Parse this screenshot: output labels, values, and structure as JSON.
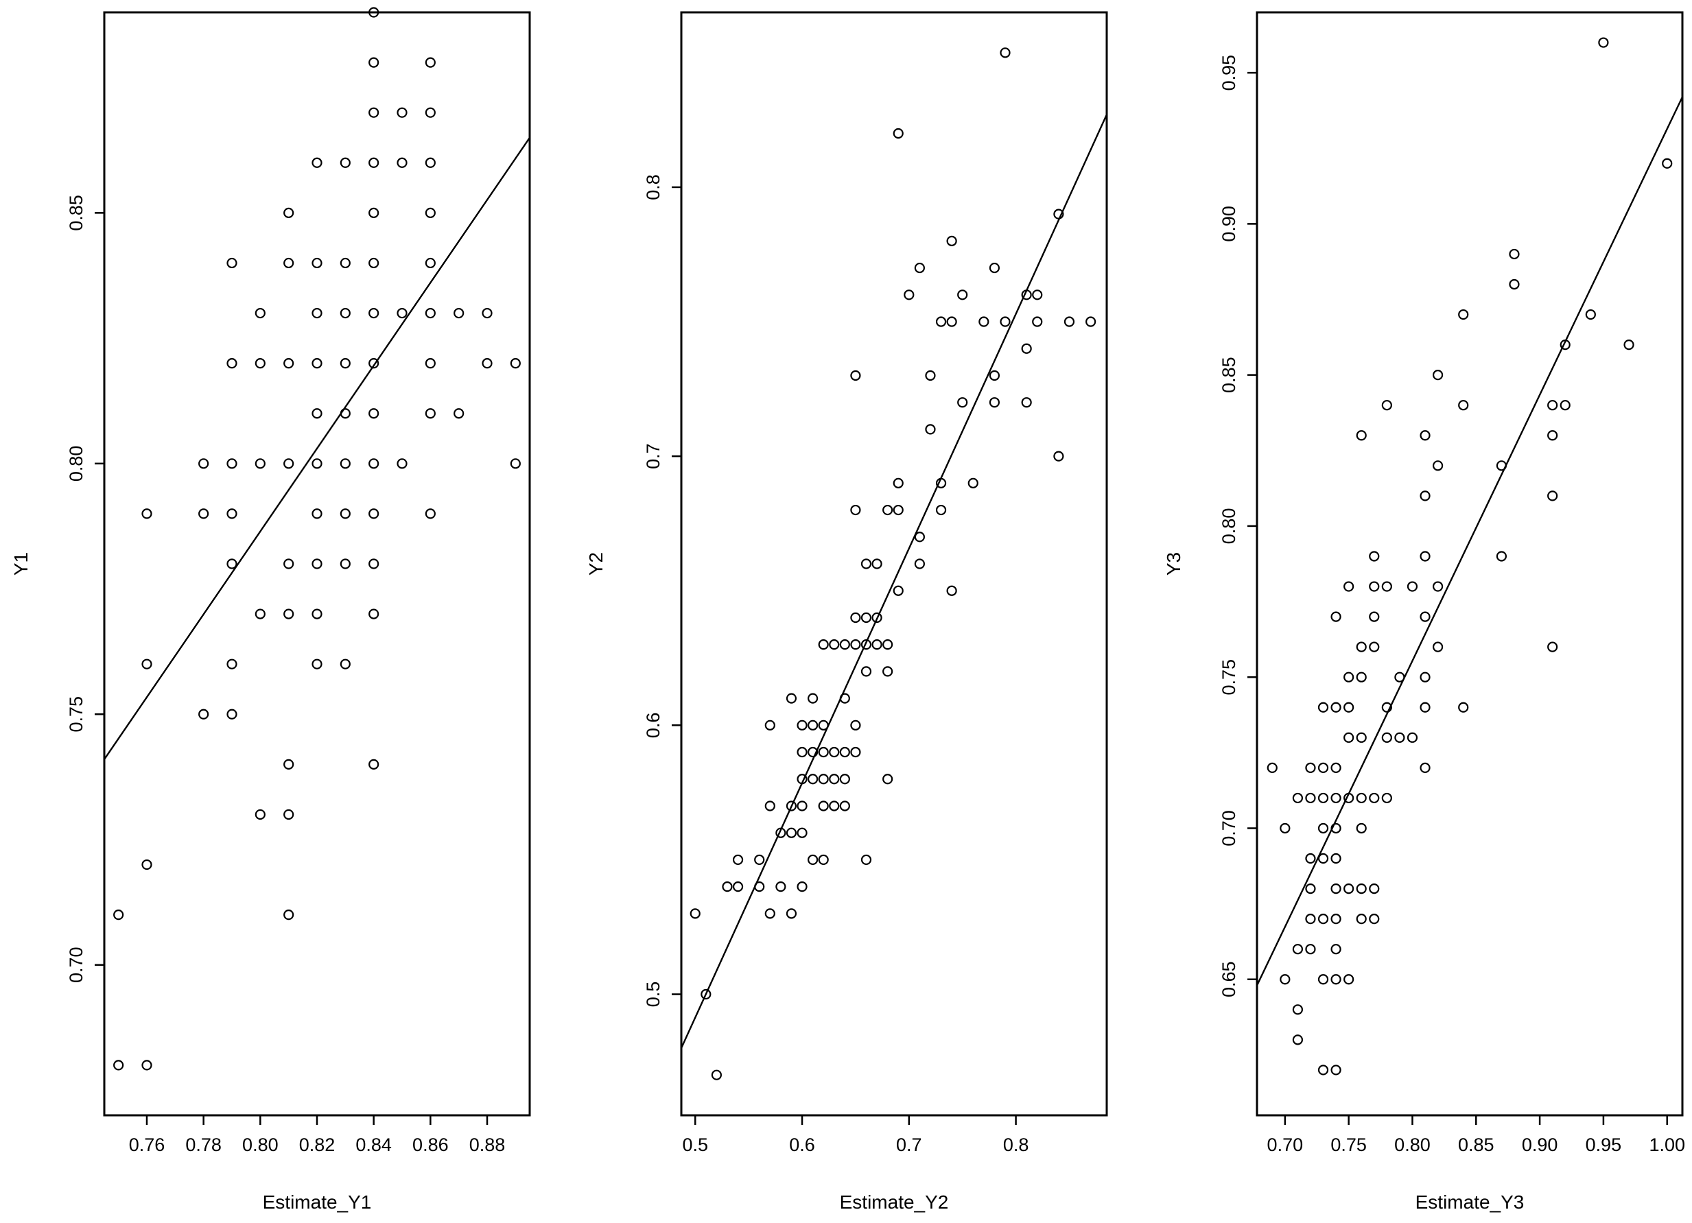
{
  "chart_data": [
    {
      "type": "scatter",
      "xlabel": "Estimate_Y1",
      "ylabel": "Y1",
      "xlim": [
        0.745,
        0.895
      ],
      "ylim": [
        0.67,
        0.89
      ],
      "xticks": [
        0.76,
        0.78,
        0.8,
        0.82,
        0.84,
        0.86,
        0.88
      ],
      "xtick_labels": [
        "0.76",
        "0.78",
        "0.80",
        "0.82",
        "0.84",
        "0.86",
        "0.88"
      ],
      "yticks": [
        0.7,
        0.75,
        0.8,
        0.85
      ],
      "ytick_labels": [
        "0.70",
        "0.75",
        "0.80",
        "0.85"
      ],
      "grid": false,
      "fit_line": {
        "x": [
          0.745,
          0.895
        ],
        "y": [
          0.741,
          0.865
        ]
      },
      "points": [
        [
          0.75,
          0.68
        ],
        [
          0.76,
          0.68
        ],
        [
          0.75,
          0.71
        ],
        [
          0.76,
          0.72
        ],
        [
          0.76,
          0.76
        ],
        [
          0.76,
          0.79
        ],
        [
          0.78,
          0.75
        ],
        [
          0.78,
          0.79
        ],
        [
          0.78,
          0.8
        ],
        [
          0.79,
          0.75
        ],
        [
          0.79,
          0.76
        ],
        [
          0.79,
          0.78
        ],
        [
          0.79,
          0.79
        ],
        [
          0.79,
          0.8
        ],
        [
          0.79,
          0.82
        ],
        [
          0.79,
          0.84
        ],
        [
          0.8,
          0.73
        ],
        [
          0.8,
          0.77
        ],
        [
          0.8,
          0.8
        ],
        [
          0.8,
          0.82
        ],
        [
          0.8,
          0.83
        ],
        [
          0.81,
          0.71
        ],
        [
          0.81,
          0.73
        ],
        [
          0.81,
          0.74
        ],
        [
          0.81,
          0.77
        ],
        [
          0.81,
          0.78
        ],
        [
          0.81,
          0.8
        ],
        [
          0.81,
          0.82
        ],
        [
          0.81,
          0.84
        ],
        [
          0.81,
          0.85
        ],
        [
          0.82,
          0.76
        ],
        [
          0.82,
          0.77
        ],
        [
          0.82,
          0.78
        ],
        [
          0.82,
          0.79
        ],
        [
          0.82,
          0.8
        ],
        [
          0.82,
          0.81
        ],
        [
          0.82,
          0.82
        ],
        [
          0.82,
          0.83
        ],
        [
          0.82,
          0.84
        ],
        [
          0.82,
          0.86
        ],
        [
          0.83,
          0.76
        ],
        [
          0.83,
          0.78
        ],
        [
          0.83,
          0.79
        ],
        [
          0.83,
          0.8
        ],
        [
          0.83,
          0.81
        ],
        [
          0.83,
          0.82
        ],
        [
          0.83,
          0.83
        ],
        [
          0.83,
          0.84
        ],
        [
          0.83,
          0.86
        ],
        [
          0.84,
          0.74
        ],
        [
          0.84,
          0.77
        ],
        [
          0.84,
          0.78
        ],
        [
          0.84,
          0.79
        ],
        [
          0.84,
          0.8
        ],
        [
          0.84,
          0.81
        ],
        [
          0.84,
          0.82
        ],
        [
          0.84,
          0.83
        ],
        [
          0.84,
          0.84
        ],
        [
          0.84,
          0.85
        ],
        [
          0.84,
          0.86
        ],
        [
          0.84,
          0.87
        ],
        [
          0.84,
          0.88
        ],
        [
          0.84,
          0.89
        ],
        [
          0.85,
          0.8
        ],
        [
          0.85,
          0.83
        ],
        [
          0.85,
          0.86
        ],
        [
          0.85,
          0.87
        ],
        [
          0.86,
          0.79
        ],
        [
          0.86,
          0.81
        ],
        [
          0.86,
          0.82
        ],
        [
          0.86,
          0.83
        ],
        [
          0.86,
          0.84
        ],
        [
          0.86,
          0.85
        ],
        [
          0.86,
          0.86
        ],
        [
          0.86,
          0.87
        ],
        [
          0.86,
          0.88
        ],
        [
          0.87,
          0.81
        ],
        [
          0.87,
          0.83
        ],
        [
          0.88,
          0.82
        ],
        [
          0.88,
          0.83
        ],
        [
          0.89,
          0.8
        ],
        [
          0.89,
          0.82
        ]
      ]
    },
    {
      "type": "scatter",
      "xlabel": "Estimate_Y2",
      "ylabel": "Y2",
      "xlim": [
        0.487,
        0.885
      ],
      "ylim": [
        0.455,
        0.865
      ],
      "xticks": [
        0.5,
        0.6,
        0.7,
        0.8
      ],
      "xtick_labels": [
        "0.5",
        "0.6",
        "0.7",
        "0.8"
      ],
      "yticks": [
        0.5,
        0.6,
        0.7,
        0.8
      ],
      "ytick_labels": [
        "0.5",
        "0.6",
        "0.7",
        "0.8"
      ],
      "grid": false,
      "fit_line": {
        "x": [
          0.487,
          0.885
        ],
        "y": [
          0.48,
          0.827
        ]
      },
      "points": [
        [
          0.5,
          0.53
        ],
        [
          0.51,
          0.5
        ],
        [
          0.52,
          0.47
        ],
        [
          0.53,
          0.54
        ],
        [
          0.54,
          0.54
        ],
        [
          0.54,
          0.55
        ],
        [
          0.56,
          0.54
        ],
        [
          0.56,
          0.55
        ],
        [
          0.57,
          0.53
        ],
        [
          0.57,
          0.57
        ],
        [
          0.57,
          0.6
        ],
        [
          0.58,
          0.54
        ],
        [
          0.58,
          0.56
        ],
        [
          0.59,
          0.53
        ],
        [
          0.59,
          0.56
        ],
        [
          0.59,
          0.57
        ],
        [
          0.59,
          0.61
        ],
        [
          0.6,
          0.54
        ],
        [
          0.6,
          0.56
        ],
        [
          0.6,
          0.57
        ],
        [
          0.6,
          0.58
        ],
        [
          0.6,
          0.59
        ],
        [
          0.6,
          0.6
        ],
        [
          0.61,
          0.55
        ],
        [
          0.61,
          0.58
        ],
        [
          0.61,
          0.59
        ],
        [
          0.61,
          0.6
        ],
        [
          0.61,
          0.61
        ],
        [
          0.62,
          0.55
        ],
        [
          0.62,
          0.57
        ],
        [
          0.62,
          0.58
        ],
        [
          0.62,
          0.59
        ],
        [
          0.62,
          0.6
        ],
        [
          0.62,
          0.63
        ],
        [
          0.63,
          0.57
        ],
        [
          0.63,
          0.58
        ],
        [
          0.63,
          0.59
        ],
        [
          0.63,
          0.63
        ],
        [
          0.64,
          0.57
        ],
        [
          0.64,
          0.58
        ],
        [
          0.64,
          0.59
        ],
        [
          0.64,
          0.61
        ],
        [
          0.64,
          0.63
        ],
        [
          0.65,
          0.59
        ],
        [
          0.65,
          0.6
        ],
        [
          0.65,
          0.63
        ],
        [
          0.65,
          0.64
        ],
        [
          0.65,
          0.68
        ],
        [
          0.65,
          0.73
        ],
        [
          0.66,
          0.55
        ],
        [
          0.66,
          0.62
        ],
        [
          0.66,
          0.63
        ],
        [
          0.66,
          0.64
        ],
        [
          0.66,
          0.66
        ],
        [
          0.67,
          0.63
        ],
        [
          0.67,
          0.64
        ],
        [
          0.67,
          0.66
        ],
        [
          0.68,
          0.58
        ],
        [
          0.68,
          0.62
        ],
        [
          0.68,
          0.63
        ],
        [
          0.68,
          0.68
        ],
        [
          0.69,
          0.65
        ],
        [
          0.69,
          0.68
        ],
        [
          0.69,
          0.69
        ],
        [
          0.69,
          0.82
        ],
        [
          0.7,
          0.76
        ],
        [
          0.71,
          0.66
        ],
        [
          0.71,
          0.67
        ],
        [
          0.71,
          0.77
        ],
        [
          0.72,
          0.71
        ],
        [
          0.72,
          0.73
        ],
        [
          0.73,
          0.68
        ],
        [
          0.73,
          0.69
        ],
        [
          0.73,
          0.75
        ],
        [
          0.74,
          0.65
        ],
        [
          0.74,
          0.75
        ],
        [
          0.74,
          0.78
        ],
        [
          0.75,
          0.72
        ],
        [
          0.75,
          0.76
        ],
        [
          0.76,
          0.69
        ],
        [
          0.77,
          0.75
        ],
        [
          0.78,
          0.72
        ],
        [
          0.78,
          0.73
        ],
        [
          0.78,
          0.77
        ],
        [
          0.79,
          0.75
        ],
        [
          0.79,
          0.85
        ],
        [
          0.81,
          0.72
        ],
        [
          0.81,
          0.74
        ],
        [
          0.81,
          0.76
        ],
        [
          0.82,
          0.75
        ],
        [
          0.82,
          0.76
        ],
        [
          0.84,
          0.7
        ],
        [
          0.84,
          0.79
        ],
        [
          0.85,
          0.75
        ],
        [
          0.87,
          0.75
        ]
      ]
    },
    {
      "type": "scatter",
      "xlabel": "Estimate_Y3",
      "ylabel": "Y3",
      "xlim": [
        0.678,
        1.012
      ],
      "ylim": [
        0.605,
        0.97
      ],
      "xticks": [
        0.7,
        0.75,
        0.8,
        0.85,
        0.9,
        0.95,
        1.0
      ],
      "xtick_labels": [
        "0.70",
        "0.75",
        "0.80",
        "0.85",
        "0.90",
        "0.95",
        "1.00"
      ],
      "yticks": [
        0.65,
        0.7,
        0.75,
        0.8,
        0.85,
        0.9,
        0.95
      ],
      "ytick_labels": [
        "0.65",
        "0.70",
        "0.75",
        "0.80",
        "0.85",
        "0.90",
        "0.95"
      ],
      "grid": false,
      "fit_line": {
        "x": [
          0.678,
          1.012
        ],
        "y": [
          0.648,
          0.942
        ]
      },
      "points": [
        [
          0.69,
          0.72
        ],
        [
          0.7,
          0.65
        ],
        [
          0.7,
          0.7
        ],
        [
          0.71,
          0.63
        ],
        [
          0.71,
          0.64
        ],
        [
          0.71,
          0.66
        ],
        [
          0.71,
          0.71
        ],
        [
          0.72,
          0.66
        ],
        [
          0.72,
          0.67
        ],
        [
          0.72,
          0.68
        ],
        [
          0.72,
          0.69
        ],
        [
          0.72,
          0.71
        ],
        [
          0.72,
          0.72
        ],
        [
          0.73,
          0.62
        ],
        [
          0.73,
          0.65
        ],
        [
          0.73,
          0.67
        ],
        [
          0.73,
          0.69
        ],
        [
          0.73,
          0.7
        ],
        [
          0.73,
          0.71
        ],
        [
          0.73,
          0.72
        ],
        [
          0.73,
          0.74
        ],
        [
          0.74,
          0.62
        ],
        [
          0.74,
          0.65
        ],
        [
          0.74,
          0.66
        ],
        [
          0.74,
          0.67
        ],
        [
          0.74,
          0.68
        ],
        [
          0.74,
          0.69
        ],
        [
          0.74,
          0.7
        ],
        [
          0.74,
          0.71
        ],
        [
          0.74,
          0.72
        ],
        [
          0.74,
          0.74
        ],
        [
          0.74,
          0.77
        ],
        [
          0.75,
          0.65
        ],
        [
          0.75,
          0.68
        ],
        [
          0.75,
          0.71
        ],
        [
          0.75,
          0.73
        ],
        [
          0.75,
          0.74
        ],
        [
          0.75,
          0.75
        ],
        [
          0.75,
          0.78
        ],
        [
          0.76,
          0.67
        ],
        [
          0.76,
          0.68
        ],
        [
          0.76,
          0.7
        ],
        [
          0.76,
          0.71
        ],
        [
          0.76,
          0.73
        ],
        [
          0.76,
          0.75
        ],
        [
          0.76,
          0.76
        ],
        [
          0.76,
          0.83
        ],
        [
          0.77,
          0.67
        ],
        [
          0.77,
          0.68
        ],
        [
          0.77,
          0.71
        ],
        [
          0.77,
          0.76
        ],
        [
          0.77,
          0.77
        ],
        [
          0.77,
          0.78
        ],
        [
          0.77,
          0.79
        ],
        [
          0.78,
          0.71
        ],
        [
          0.78,
          0.73
        ],
        [
          0.78,
          0.74
        ],
        [
          0.78,
          0.78
        ],
        [
          0.78,
          0.84
        ],
        [
          0.79,
          0.73
        ],
        [
          0.79,
          0.75
        ],
        [
          0.8,
          0.73
        ],
        [
          0.8,
          0.78
        ],
        [
          0.81,
          0.72
        ],
        [
          0.81,
          0.74
        ],
        [
          0.81,
          0.75
        ],
        [
          0.81,
          0.77
        ],
        [
          0.81,
          0.79
        ],
        [
          0.81,
          0.81
        ],
        [
          0.81,
          0.83
        ],
        [
          0.82,
          0.76
        ],
        [
          0.82,
          0.78
        ],
        [
          0.82,
          0.82
        ],
        [
          0.82,
          0.85
        ],
        [
          0.84,
          0.74
        ],
        [
          0.84,
          0.84
        ],
        [
          0.84,
          0.87
        ],
        [
          0.87,
          0.79
        ],
        [
          0.87,
          0.82
        ],
        [
          0.88,
          0.88
        ],
        [
          0.88,
          0.89
        ],
        [
          0.91,
          0.76
        ],
        [
          0.91,
          0.81
        ],
        [
          0.91,
          0.83
        ],
        [
          0.91,
          0.84
        ],
        [
          0.92,
          0.84
        ],
        [
          0.92,
          0.86
        ],
        [
          0.94,
          0.87
        ],
        [
          0.95,
          0.96
        ],
        [
          0.97,
          0.86
        ],
        [
          1.0,
          0.92
        ]
      ]
    }
  ]
}
